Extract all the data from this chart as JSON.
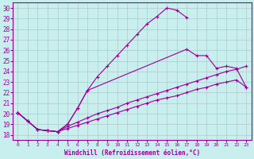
{
  "xlabel": "Windchill (Refroidissement éolien,°C)",
  "bg_color": "#c8eeee",
  "line_color": "#990099",
  "grid_color": "#b0c8c8",
  "xlim": [
    -0.5,
    23.5
  ],
  "ylim": [
    17.5,
    30.5
  ],
  "xticks": [
    0,
    1,
    2,
    3,
    4,
    5,
    6,
    7,
    8,
    9,
    10,
    11,
    12,
    13,
    14,
    15,
    16,
    17,
    18,
    19,
    20,
    21,
    22,
    23
  ],
  "yticks": [
    18,
    19,
    20,
    21,
    22,
    23,
    24,
    25,
    26,
    27,
    28,
    29,
    30
  ],
  "line1_x": [
    0,
    1,
    2,
    3,
    4,
    5,
    6,
    7,
    8,
    9,
    10,
    11,
    12,
    13,
    14,
    15,
    16,
    17
  ],
  "line1_y": [
    20.1,
    19.3,
    18.5,
    18.4,
    18.3,
    19.0,
    20.5,
    22.2,
    23.5,
    24.5,
    25.5,
    26.5,
    27.5,
    28.5,
    29.2,
    30.0,
    29.8,
    29.1
  ],
  "line2_x": [
    0,
    1,
    2,
    3,
    4,
    5,
    6,
    7,
    17,
    18,
    19,
    20,
    21,
    22,
    23
  ],
  "line2_y": [
    20.1,
    19.3,
    18.5,
    18.4,
    18.3,
    19.0,
    20.5,
    22.2,
    26.1,
    25.5,
    25.5,
    24.3,
    24.5,
    24.3,
    22.5
  ],
  "line3_x": [
    0,
    1,
    2,
    3,
    4,
    5,
    6,
    7,
    8,
    9,
    10,
    11,
    12,
    13,
    14,
    15,
    16,
    17,
    18,
    19,
    20,
    21,
    22,
    23
  ],
  "line3_y": [
    20.1,
    19.3,
    18.5,
    18.4,
    18.3,
    18.8,
    19.2,
    19.6,
    20.0,
    20.3,
    20.6,
    21.0,
    21.3,
    21.6,
    21.9,
    22.2,
    22.5,
    22.8,
    23.1,
    23.4,
    23.7,
    24.0,
    24.2,
    24.5
  ],
  "line4_x": [
    0,
    1,
    2,
    3,
    4,
    5,
    6,
    7,
    8,
    9,
    10,
    11,
    12,
    13,
    14,
    15,
    16,
    17,
    18,
    19,
    20,
    21,
    22,
    23
  ],
  "line4_y": [
    20.1,
    19.3,
    18.5,
    18.4,
    18.3,
    18.6,
    18.9,
    19.2,
    19.5,
    19.8,
    20.1,
    20.4,
    20.7,
    21.0,
    21.3,
    21.5,
    21.7,
    22.0,
    22.3,
    22.5,
    22.8,
    23.0,
    23.2,
    22.5
  ]
}
